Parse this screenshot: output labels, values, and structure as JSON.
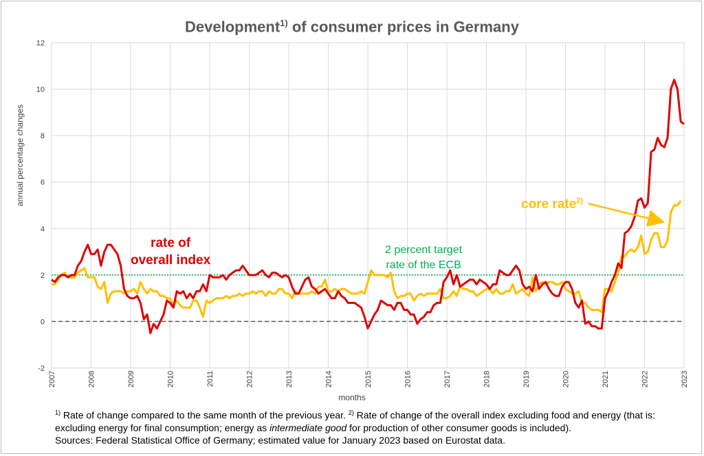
{
  "header": {
    "title_main": "Development",
    "title_sup": "1)",
    "title_rest": " of consumer prices in Germany"
  },
  "chart_data": {
    "type": "line",
    "ylabel": "annual percentage changes",
    "xlabel": "months",
    "ylim": [
      -2,
      12
    ],
    "yticks": [
      "-2",
      "0",
      "2",
      "4",
      "6",
      "8",
      "10",
      "12"
    ],
    "xticks": [
      "2007",
      "2008",
      "2009",
      "2010",
      "2011",
      "2012",
      "2013",
      "2014",
      "2015",
      "2016",
      "2017",
      "2018",
      "2019",
      "2020",
      "2021",
      "2022",
      "2023"
    ],
    "x_range": [
      "2007-01",
      "2023-01"
    ],
    "reference_lines": [
      {
        "name": "2 percent target rate of the ECB",
        "y": 2,
        "color": "#00b050",
        "style": "dotted"
      },
      {
        "name": "zero",
        "y": 0,
        "color": "#595959",
        "style": "dashed"
      }
    ],
    "series": [
      {
        "name": "rate of overall index",
        "color": "#e00000",
        "start": "2007-01",
        "values": [
          1.8,
          1.7,
          1.9,
          2.0,
          2.0,
          1.9,
          2.0,
          2.0,
          2.4,
          2.6,
          3.0,
          3.3,
          2.9,
          2.9,
          3.1,
          2.4,
          3.0,
          3.3,
          3.3,
          3.1,
          2.9,
          2.4,
          1.4,
          1.1,
          1.0,
          1.0,
          1.1,
          0.8,
          0.1,
          0.3,
          -0.5,
          -0.1,
          -0.3,
          0.0,
          0.3,
          0.9,
          0.8,
          0.6,
          1.3,
          1.2,
          1.3,
          1.0,
          1.2,
          1.0,
          1.3,
          1.3,
          1.6,
          1.3,
          2.0,
          1.9,
          1.9,
          1.9,
          2.0,
          1.8,
          2.0,
          2.1,
          2.2,
          2.2,
          2.4,
          2.2,
          2.0,
          2.0,
          2.0,
          2.1,
          2.2,
          2.0,
          1.9,
          2.1,
          2.1,
          2.0,
          1.9,
          2.0,
          1.9,
          1.5,
          1.2,
          1.2,
          1.5,
          1.8,
          1.9,
          1.5,
          1.4,
          1.2,
          1.3,
          1.4,
          1.2,
          1.0,
          1.0,
          1.3,
          1.1,
          1.0,
          0.8,
          0.8,
          0.8,
          0.7,
          0.6,
          0.2,
          -0.3,
          0.0,
          0.3,
          0.5,
          0.9,
          0.8,
          0.7,
          0.7,
          0.5,
          0.8,
          0.8,
          0.5,
          0.5,
          0.3,
          0.3,
          -0.1,
          0.1,
          0.2,
          0.4,
          0.4,
          0.7,
          0.8,
          0.8,
          1.7,
          1.9,
          2.2,
          1.6,
          2.0,
          1.5,
          1.6,
          1.7,
          1.8,
          1.8,
          1.6,
          1.8,
          1.7,
          1.6,
          1.4,
          1.6,
          1.6,
          2.2,
          2.1,
          2.0,
          2.0,
          2.2,
          2.4,
          2.2,
          1.6,
          1.4,
          1.5,
          1.3,
          2.0,
          1.4,
          1.6,
          1.7,
          1.4,
          1.2,
          1.1,
          1.1,
          1.5,
          1.7,
          1.7,
          1.4,
          0.8,
          0.6,
          0.9,
          -0.1,
          0.0,
          -0.2,
          -0.2,
          -0.3,
          -0.3,
          1.0,
          1.3,
          1.7,
          2.0,
          2.5,
          2.3,
          3.8,
          3.9,
          4.1,
          4.5,
          5.2,
          5.3,
          4.9,
          5.1,
          7.3,
          7.4,
          7.9,
          7.6,
          7.5,
          7.9,
          10.0,
          10.4,
          10.0,
          8.6,
          8.5
        ],
        "label_lines": [
          "rate of",
          "overall index"
        ]
      },
      {
        "name": "core rate",
        "name_sup": "2)",
        "color": "#ffc000",
        "start": "2007-01",
        "values": [
          1.6,
          1.6,
          1.8,
          2.0,
          2.1,
          1.9,
          1.9,
          1.9,
          2.1,
          2.2,
          2.3,
          1.9,
          1.9,
          1.9,
          1.5,
          1.4,
          1.7,
          0.8,
          1.2,
          1.3,
          1.3,
          1.3,
          1.2,
          1.3,
          1.3,
          1.4,
          1.2,
          1.7,
          1.4,
          1.2,
          1.4,
          1.3,
          1.3,
          1.1,
          1.1,
          1.0,
          1.0,
          0.7,
          0.9,
          0.7,
          0.6,
          0.6,
          0.6,
          0.9,
          0.9,
          0.6,
          0.2,
          0.9,
          0.8,
          0.9,
          1.0,
          1.0,
          1.0,
          1.1,
          1.0,
          1.1,
          1.1,
          1.2,
          1.1,
          1.2,
          1.2,
          1.3,
          1.2,
          1.3,
          1.3,
          1.1,
          1.3,
          1.2,
          1.2,
          1.4,
          1.4,
          1.2,
          1.2,
          1.0,
          1.3,
          1.2,
          1.2,
          1.2,
          1.2,
          1.3,
          1.2,
          1.5,
          1.5,
          1.8,
          1.3,
          1.3,
          1.4,
          1.3,
          1.4,
          1.4,
          1.3,
          1.2,
          1.2,
          1.2,
          1.3,
          1.2,
          1.7,
          2.2,
          2.0,
          2.0,
          2.0,
          2.0,
          1.9,
          2.1,
          1.3,
          1.0,
          1.1,
          1.1,
          1.2,
          1.2,
          0.9,
          1.1,
          1.2,
          1.1,
          1.2,
          1.2,
          1.2,
          1.2,
          1.4,
          1.0,
          1.0,
          1.1,
          1.3,
          1.1,
          1.5,
          1.4,
          1.4,
          1.3,
          1.3,
          1.1,
          1.2,
          1.3,
          1.4,
          1.4,
          1.2,
          1.4,
          1.2,
          1.2,
          1.3,
          1.3,
          1.6,
          1.2,
          1.3,
          1.4,
          1.2,
          1.1,
          1.9,
          1.3,
          1.6,
          1.7,
          1.6,
          1.7,
          1.7,
          1.6,
          1.6,
          1.7,
          1.4,
          1.3,
          1.2,
          1.2,
          1.3,
          0.8,
          0.8,
          0.6,
          0.5,
          0.5,
          0.5,
          0.4,
          1.4,
          1.4,
          1.3,
          1.7,
          2.1,
          2.8,
          2.8,
          3.0,
          3.1,
          3.0,
          3.2,
          3.7,
          2.9,
          3.0,
          3.5,
          3.8,
          3.8,
          3.2,
          3.2,
          3.5,
          4.7,
          5.0,
          5.0,
          5.2
        ],
        "label": "core rate"
      }
    ],
    "annotations": {
      "target_lines": [
        "2 percent target",
        "rate of the ECB"
      ]
    }
  },
  "footnote": {
    "sup1": "1)",
    "text1": " Rate of change compared to the same month of the previous year. ",
    "sup2": "2)",
    "text2": " Rate of change of the overall index excluding food and energy (that is: excluding energy for final consumption; energy as ",
    "em": "intermediate good",
    "text3": " for production of other consumer goods is included).",
    "sources": "Sources: Federal Statistical Office of Germany; estimated value for January 2023 based on Eurostat data."
  },
  "colors": {
    "overall": "#e00000",
    "core": "#ffc000",
    "target": "#00b050",
    "zero": "#595959",
    "grid": "#d9d9d9"
  }
}
